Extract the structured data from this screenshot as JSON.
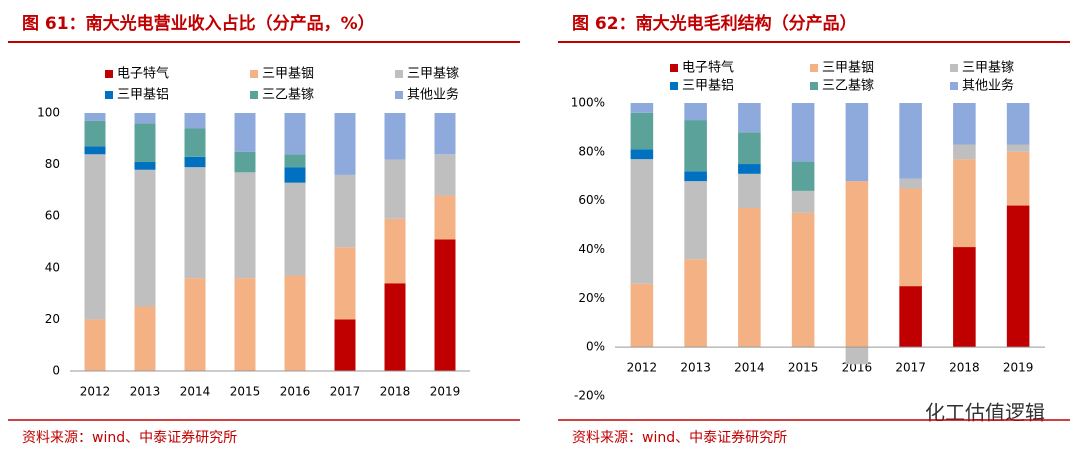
{
  "chart_data": [
    {
      "type": "bar",
      "stacked": true,
      "title": "图 61：南大光电营业收入占比（分产品，%）",
      "source": "资料来源：wind、中泰证券研究所",
      "categories": [
        "2012",
        "2013",
        "2014",
        "2015",
        "2016",
        "2017",
        "2018",
        "2019"
      ],
      "series": [
        {
          "name": "电子特气",
          "color": "#c00000",
          "values": [
            0,
            0,
            0,
            0,
            0,
            20,
            34,
            51
          ]
        },
        {
          "name": "三甲基铟",
          "color": "#f4b183",
          "values": [
            20,
            25,
            36,
            36,
            37,
            28,
            25,
            17
          ]
        },
        {
          "name": "三甲基镓",
          "color": "#bfbfbf",
          "values": [
            64,
            53,
            43,
            41,
            36,
            28,
            23,
            16
          ]
        },
        {
          "name": "三甲基铝",
          "color": "#0070c0",
          "values": [
            3,
            3,
            4,
            0,
            6,
            0,
            0,
            0
          ]
        },
        {
          "name": "三乙基镓",
          "color": "#5ba39a",
          "values": [
            10,
            15,
            11,
            8,
            5,
            0,
            0,
            0
          ]
        },
        {
          "name": "其他业务",
          "color": "#8ea9db",
          "values": [
            3,
            4,
            6,
            15,
            16,
            24,
            18,
            16
          ]
        }
      ],
      "ylim": [
        0,
        100
      ],
      "yticks": [
        0,
        20,
        40,
        60,
        80,
        100
      ]
    },
    {
      "type": "bar",
      "stacked": true,
      "title": "图 62：南大光电毛利结构（分产品）",
      "source": "资料来源：wind、中泰证券研究所",
      "categories": [
        "2012",
        "2013",
        "2014",
        "2015",
        "2016",
        "2017",
        "2018",
        "2019"
      ],
      "series": [
        {
          "name": "电子特气",
          "color": "#c00000",
          "values": [
            0,
            0,
            0,
            0,
            0,
            25,
            41,
            58
          ]
        },
        {
          "name": "三甲基铟",
          "color": "#f4b183",
          "values": [
            26,
            36,
            57,
            55,
            68,
            40,
            36,
            22
          ]
        },
        {
          "name": "三甲基镓",
          "color": "#bfbfbf",
          "values": [
            51,
            32,
            14,
            9,
            -7,
            4,
            6,
            3
          ]
        },
        {
          "name": "三甲基铝",
          "color": "#0070c0",
          "values": [
            4,
            4,
            4,
            0,
            0,
            0,
            0,
            0
          ]
        },
        {
          "name": "三乙基镓",
          "color": "#5ba39a",
          "values": [
            15,
            21,
            13,
            12,
            0,
            0,
            0,
            0
          ]
        },
        {
          "name": "其他业务",
          "color": "#8ea9db",
          "values": [
            4,
            7,
            12,
            24,
            32,
            31,
            17,
            17
          ]
        }
      ],
      "ylim": [
        -20,
        100
      ],
      "yticks": [
        {
          "value": -20,
          "label": "-20%"
        },
        {
          "value": 0,
          "label": "0%"
        },
        {
          "value": 20,
          "label": "20%"
        },
        {
          "value": 40,
          "label": "40%"
        },
        {
          "value": 60,
          "label": "60%"
        },
        {
          "value": 80,
          "label": "80%"
        },
        {
          "value": 100,
          "label": "100%"
        }
      ]
    }
  ],
  "watermark": "化工估值逻辑"
}
